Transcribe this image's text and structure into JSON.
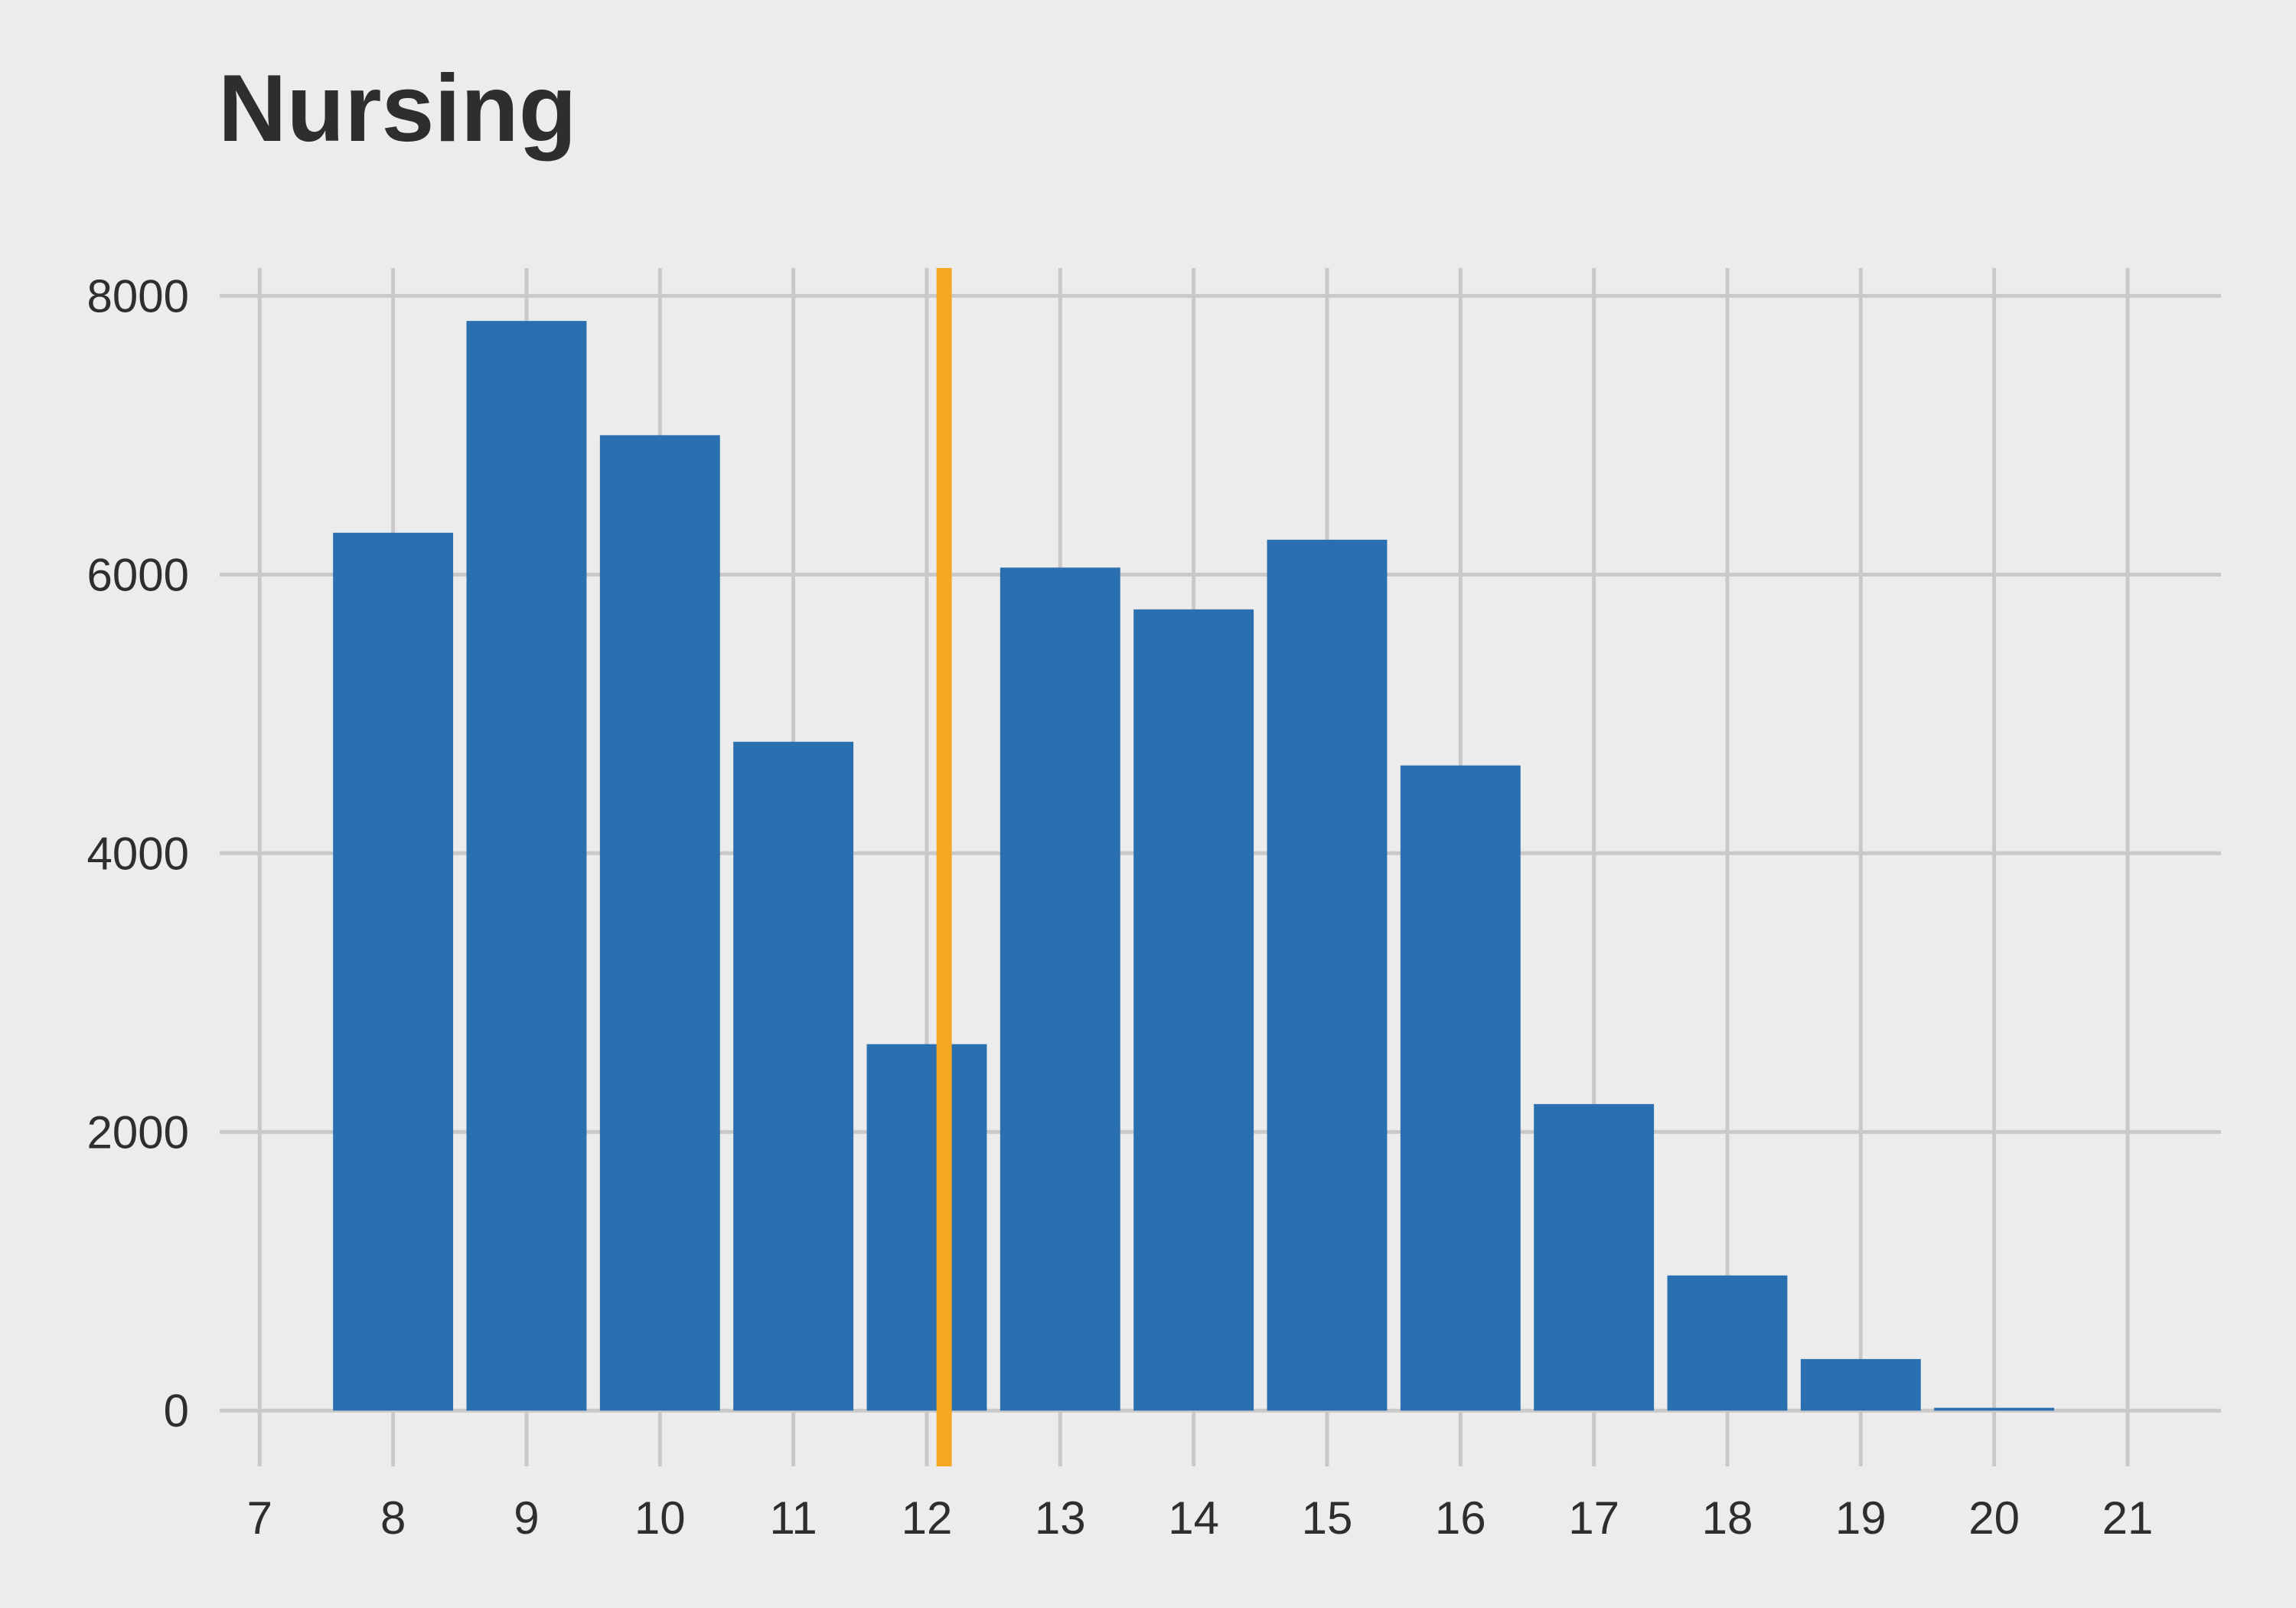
{
  "chart_data": {
    "type": "bar",
    "title": "Nursing",
    "xlabel": "",
    "ylabel": "",
    "x": [
      8,
      9,
      10,
      11,
      12,
      13,
      14,
      15,
      16,
      17,
      18,
      19,
      20
    ],
    "values": [
      6300,
      7820,
      7000,
      4800,
      2630,
      6050,
      5750,
      6250,
      4630,
      2200,
      970,
      370,
      20
    ],
    "xlim": [
      6.7,
      21.7
    ],
    "ylim": [
      -400,
      8200
    ],
    "x_ticks": [
      "7",
      "8",
      "9",
      "10",
      "11",
      "12",
      "13",
      "14",
      "15",
      "16",
      "17",
      "18",
      "19",
      "20",
      "21"
    ],
    "y_ticks": [
      "0",
      "2000",
      "4000",
      "6000",
      "8000"
    ],
    "reference_line": {
      "x": 12.13,
      "color": "#f5a623"
    },
    "bar_color": "#2a6fb0",
    "grid": true,
    "grid_color": "#c9c9c9",
    "background": "#ececec"
  }
}
